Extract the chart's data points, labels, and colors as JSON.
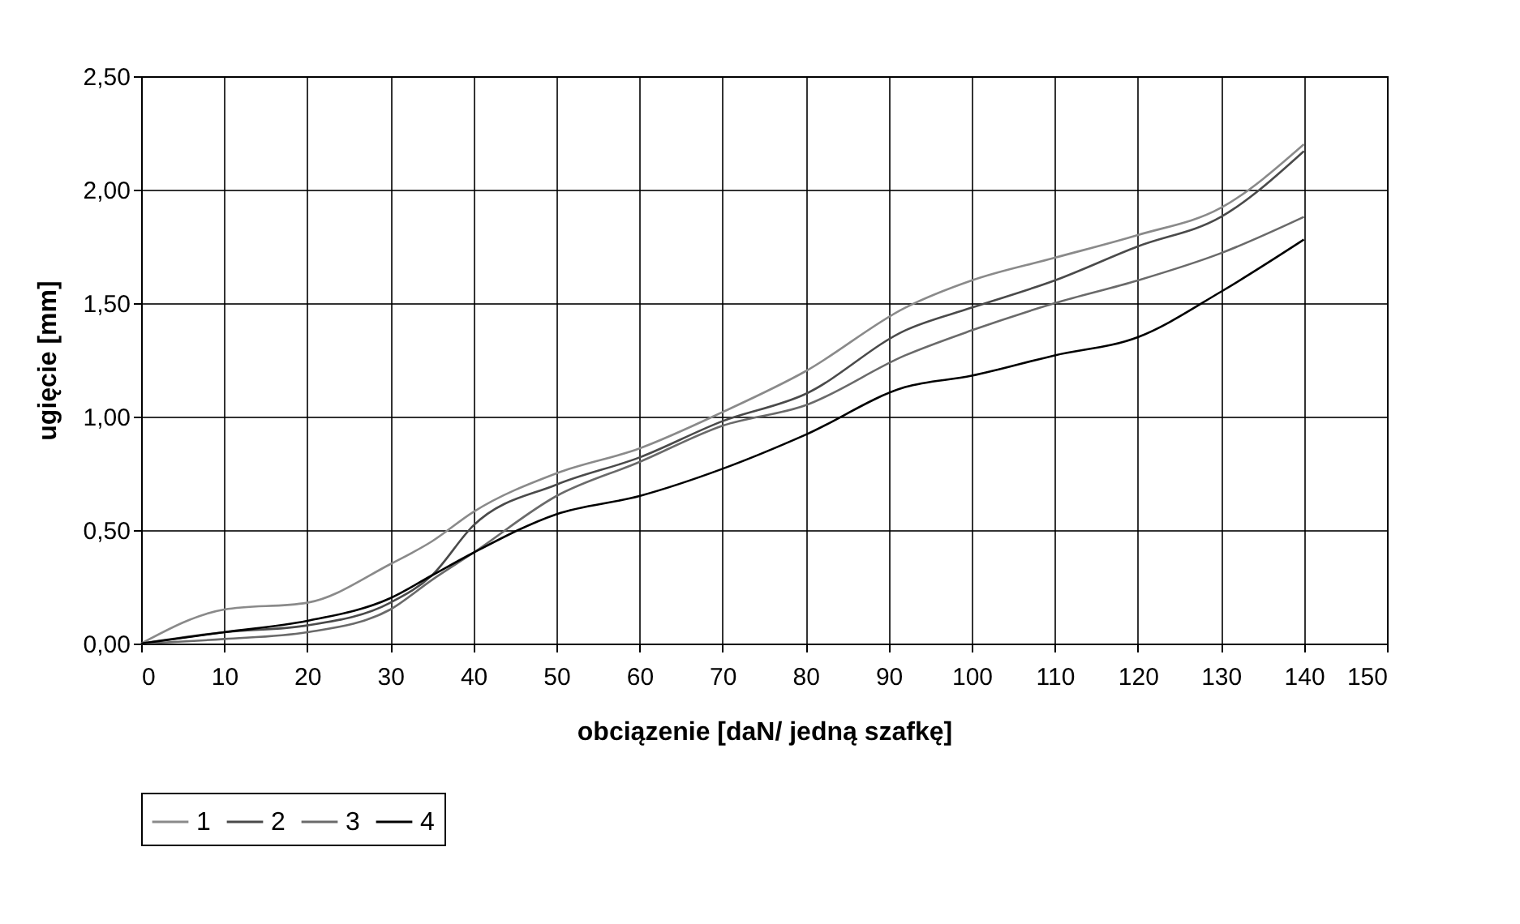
{
  "chart_data": {
    "type": "line",
    "xlabel": "obciązenie [daN/ jedną szafkę]",
    "ylabel": "ugięcie [mm]",
    "x": [
      0,
      10,
      20,
      30,
      35,
      40,
      50,
      60,
      70,
      80,
      92,
      100,
      110,
      120,
      130,
      140
    ],
    "series": [
      {
        "name": "1",
        "color": "#8a8a8a",
        "values": [
          0,
          0.15,
          0.18,
          0.35,
          0.45,
          0.58,
          0.75,
          0.86,
          1.02,
          1.2,
          1.48,
          1.6,
          1.7,
          1.8,
          1.92,
          2.2
        ]
      },
      {
        "name": "2",
        "color": "#4a4a4a",
        "values": [
          0,
          0.05,
          0.08,
          0.18,
          0.3,
          0.52,
          0.7,
          0.82,
          0.98,
          1.1,
          1.38,
          1.48,
          1.6,
          1.75,
          1.88,
          2.17
        ]
      },
      {
        "name": "3",
        "color": "#6a6a6a",
        "values": [
          0,
          0.02,
          0.05,
          0.15,
          0.28,
          0.4,
          0.65,
          0.8,
          0.96,
          1.05,
          1.27,
          1.38,
          1.5,
          1.6,
          1.72,
          1.88
        ]
      },
      {
        "name": "4",
        "color": "#000000",
        "values": [
          0,
          0.05,
          0.1,
          0.2,
          0.3,
          0.4,
          0.57,
          0.65,
          0.77,
          0.92,
          1.13,
          1.18,
          1.27,
          1.35,
          1.55,
          1.78
        ]
      }
    ],
    "xlim": [
      0,
      150
    ],
    "xticks": [
      0,
      10,
      20,
      30,
      40,
      50,
      60,
      70,
      80,
      90,
      100,
      110,
      120,
      130,
      140,
      150
    ],
    "ylim": [
      0,
      2.5
    ],
    "yticks": [
      {
        "value": 0,
        "label": "0,00"
      },
      {
        "value": 0.5,
        "label": "0,50"
      },
      {
        "value": 1,
        "label": "1,00"
      },
      {
        "value": 1.5,
        "label": "1,50"
      },
      {
        "value": 2,
        "label": "2,00"
      },
      {
        "value": 2.5,
        "label": "2,50"
      }
    ],
    "grid": true,
    "legend": "bottom",
    "line_style": "solid"
  }
}
